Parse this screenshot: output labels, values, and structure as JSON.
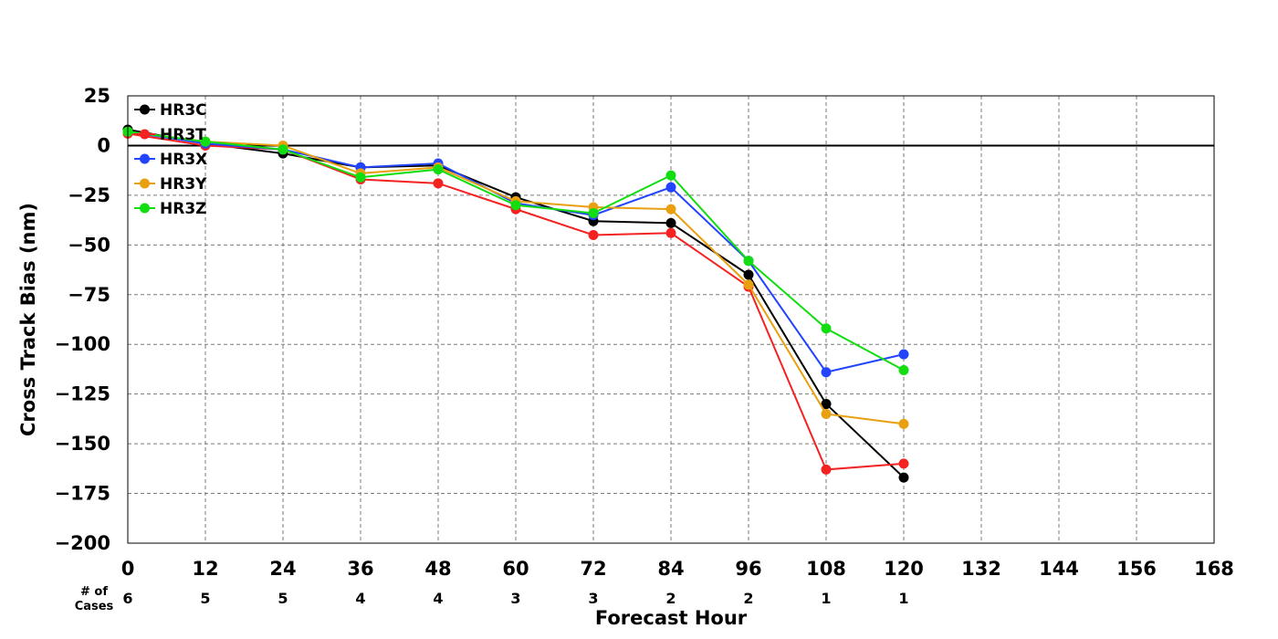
{
  "chart_data": {
    "type": "line",
    "title": "",
    "xlabel": "Forecast Hour",
    "ylabel": "Cross Track Bias (nm)",
    "xlim": [
      0,
      168
    ],
    "ylim": [
      -200,
      25
    ],
    "x_ticks": [
      "0",
      "12",
      "24",
      "36",
      "48",
      "60",
      "72",
      "84",
      "96",
      "108",
      "120",
      "132",
      "144",
      "156",
      "168"
    ],
    "y_ticks": [
      "25",
      "0",
      "−25",
      "−50",
      "−75",
      "−100",
      "−125",
      "−150",
      "−175",
      "−200"
    ],
    "grid": true,
    "legend_position": "top-left",
    "cases_label_line1": "# of",
    "cases_label_line2": "Cases",
    "cases": [
      "6",
      "5",
      "5",
      "4",
      "4",
      "3",
      "3",
      "2",
      "2",
      "1",
      "1"
    ],
    "x": [
      0,
      12,
      24,
      36,
      48,
      60,
      72,
      84,
      96,
      108,
      120
    ],
    "series": [
      {
        "name": "HR3C",
        "color": "#000000",
        "values": [
          8,
          1,
          -4,
          -11,
          -10,
          -26,
          -38,
          -39,
          -65,
          -130,
          -167
        ]
      },
      {
        "name": "HR3T",
        "color": "#f52222",
        "values": [
          6,
          0,
          -2,
          -17,
          -19,
          -32,
          -45,
          -44,
          -71,
          -163,
          -160
        ]
      },
      {
        "name": "HR3X",
        "color": "#2244ff",
        "values": [
          7,
          1,
          -2,
          -11,
          -9,
          -29,
          -35,
          -21,
          -58,
          -114,
          -105
        ]
      },
      {
        "name": "HR3Y",
        "color": "#e8a010",
        "values": [
          7,
          2,
          0,
          -14,
          -11,
          -28,
          -31,
          -32,
          -70,
          -135,
          -140
        ]
      },
      {
        "name": "HR3Z",
        "color": "#11dd11",
        "values": [
          7,
          2,
          -2,
          -16,
          -12,
          -30,
          -34,
          -15,
          -58,
          -92,
          -113
        ]
      }
    ]
  }
}
